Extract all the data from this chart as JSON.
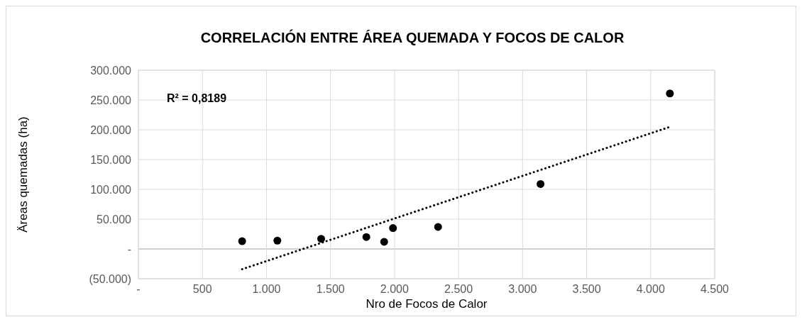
{
  "chart_data": {
    "type": "scatter",
    "title": "CORRELACIÓN ENTRE ÁREA QUEMADA Y FOCOS DE CALOR",
    "xlabel": "Nro de Focos de Calor",
    "ylabel": "Äreas quemadas (ha)",
    "annotations": [
      "R² = 0,8189"
    ],
    "series": [
      {
        "color": "#000000",
        "marker": "circle",
        "x": [
          810,
          1085,
          1427,
          1780,
          1919,
          1988,
          2340,
          3140,
          4150
        ],
        "values": [
          13000,
          14000,
          17000,
          20000,
          12000,
          35000,
          37000,
          109000,
          261000
        ]
      },
      {
        "type": "line",
        "color": "#000000",
        "marker": "none",
        "line_style": "dotted",
        "x": [
          810,
          4152
        ],
        "values": [
          -34000,
          205000
        ]
      }
    ],
    "xlim": [
      0,
      4500
    ],
    "xticks": [
      {
        "value": 0,
        "label": "-"
      },
      500,
      {
        "value": 1000,
        "label": "1.000"
      },
      {
        "value": 1500,
        "label": "1.500"
      },
      {
        "value": 2000,
        "label": "2.000"
      },
      {
        "value": 2500,
        "label": "2.500"
      },
      {
        "value": 3000,
        "label": "3.000"
      },
      {
        "value": 3500,
        "label": "3.500"
      },
      {
        "value": 4000,
        "label": "4.000"
      },
      {
        "value": 4500,
        "label": "4.500"
      }
    ],
    "ylim": [
      -50000,
      300000
    ],
    "yticks": [
      {
        "value": -50000,
        "label": "(50.000)"
      },
      {
        "value": 0,
        "label": "-"
      },
      {
        "value": 50000,
        "label": "50.000"
      },
      {
        "value": 100000,
        "label": "100.000"
      },
      {
        "value": 150000,
        "label": "150.000"
      },
      {
        "value": 200000,
        "label": "200.000"
      },
      {
        "value": 250000,
        "label": "250.000"
      },
      {
        "value": 300000,
        "label": "300.000"
      }
    ],
    "grid": true
  }
}
